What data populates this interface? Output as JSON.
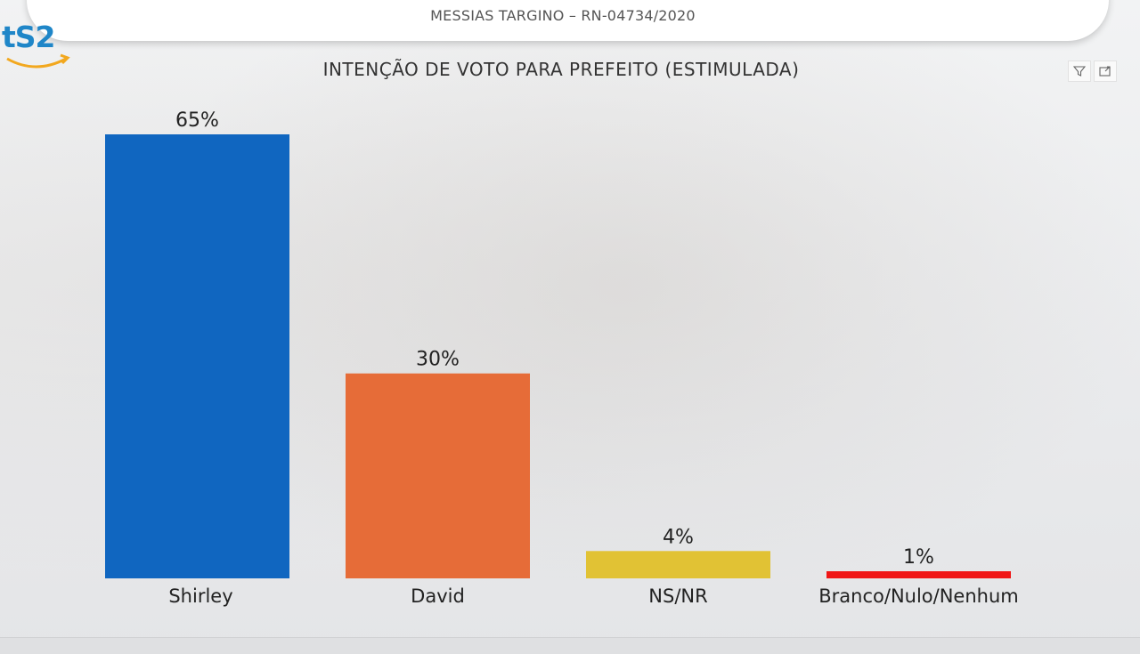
{
  "header": {
    "title": "MESSIAS TARGINO  – RN-04734/2020"
  },
  "logo": {
    "text": "tS2"
  },
  "toolbar": {
    "filter_icon": "filter-icon",
    "focus_icon": "focus-mode-icon"
  },
  "chart_data": {
    "type": "bar",
    "title": "INTENÇÃO DE VOTO PARA PREFEITO (ESTIMULADA)",
    "xlabel": "",
    "ylabel": "",
    "ylim": [
      0,
      65
    ],
    "grid": false,
    "categories": [
      "Shirley",
      "David",
      "NS/NR",
      "Branco/Nulo/Nenhum"
    ],
    "values": [
      65,
      30,
      4,
      1
    ],
    "data_labels": [
      "65%",
      "30%",
      "4%",
      "1%"
    ],
    "colors": [
      "#1066c0",
      "#e66c38",
      "#e1c234",
      "#f01616"
    ]
  }
}
